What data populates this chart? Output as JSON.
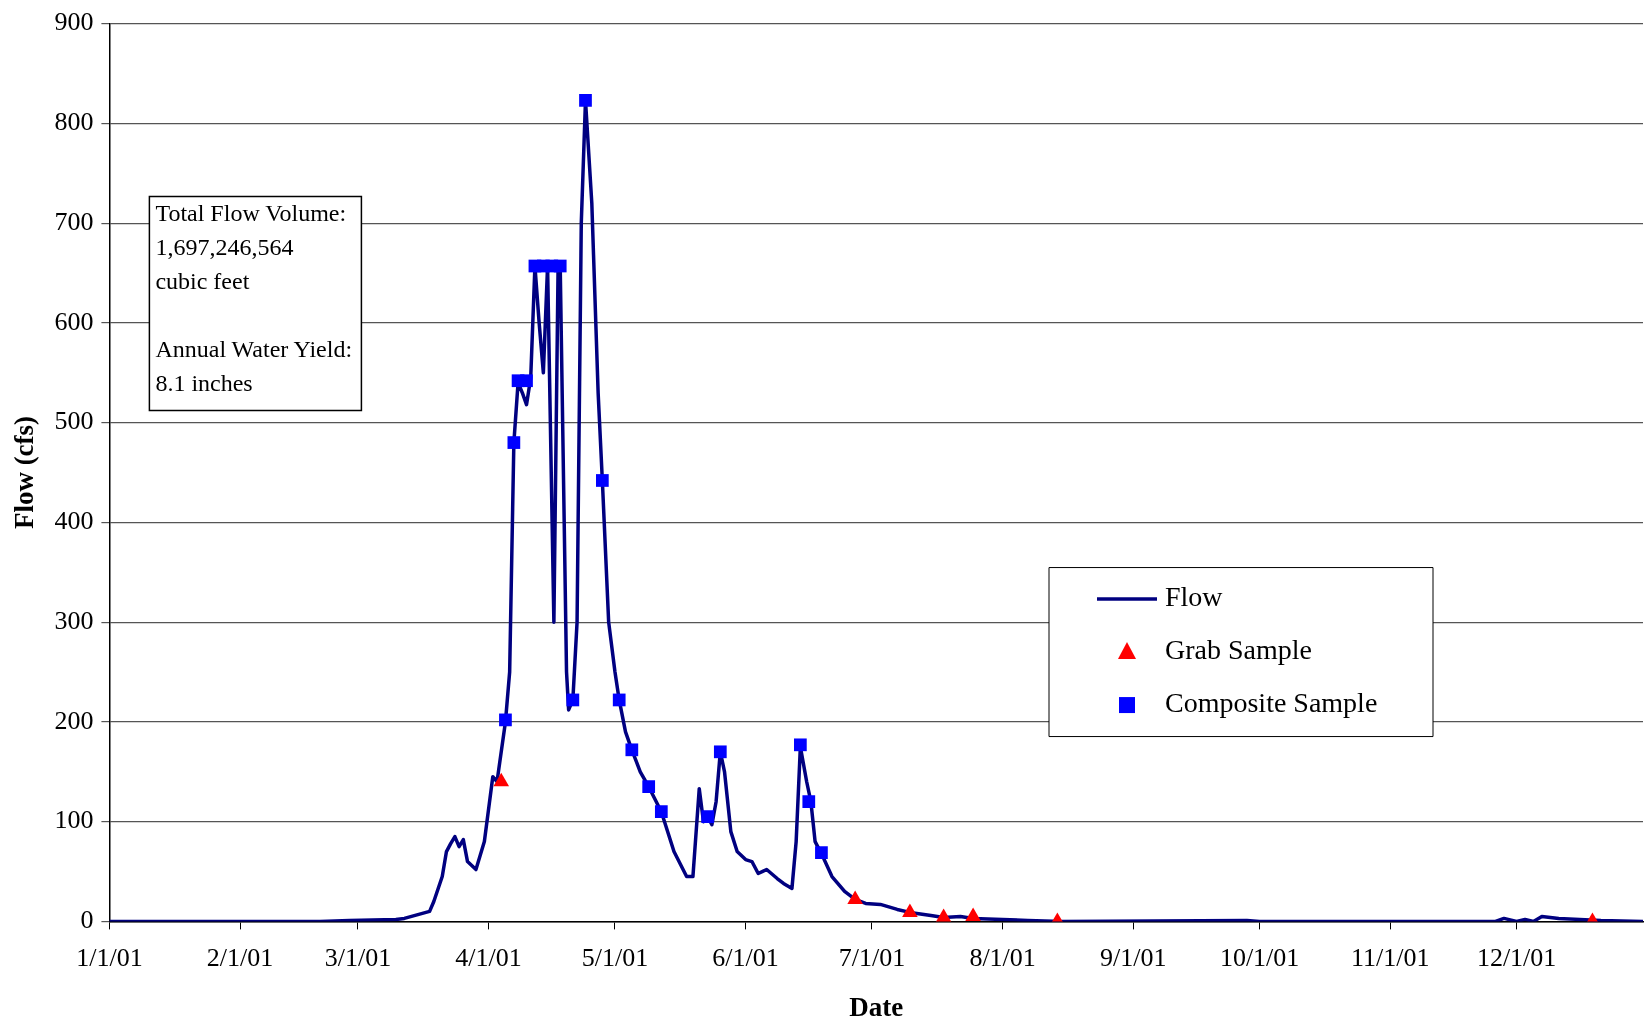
{
  "chart_data": {
    "type": "line",
    "xlabel": "Date",
    "ylabel": "Flow (cfs)",
    "xlim": [
      "--01-01",
      "--12-31"
    ],
    "xticks": [
      {
        "value": "--01-01",
        "label": "1/1/01"
      },
      {
        "value": "--02-01",
        "label": "2/1/01"
      },
      {
        "value": "--03-01",
        "label": "3/1/01"
      },
      {
        "value": "--04-01",
        "label": "4/1/01"
      },
      {
        "value": "--05-01",
        "label": "5/1/01"
      },
      {
        "value": "--06-01",
        "label": "6/1/01"
      },
      {
        "value": "--07-01",
        "label": "7/1/01"
      },
      {
        "value": "--08-01",
        "label": "8/1/01"
      },
      {
        "value": "--09-01",
        "label": "9/1/01"
      },
      {
        "value": "--10-01",
        "label": "10/1/01"
      },
      {
        "value": "--11-01",
        "label": "11/1/01"
      },
      {
        "value": "--12-01",
        "label": "12/1/01"
      }
    ],
    "ylim": [
      0,
      900
    ],
    "yticks": [
      0,
      100,
      200,
      300,
      400,
      500,
      600,
      700,
      800,
      900
    ],
    "grid": "y",
    "legend": "right",
    "annotations": [
      "Total Flow Volume:\n1,697,246,564\ncubic feet\n\nAnnual Water Yield:\n8.1 inches"
    ],
    "series": [
      {
        "name": "Flow",
        "color": "#000080",
        "marker": "none",
        "line_style": "solid",
        "x": [
          "--01-01",
          "--02-20",
          "--02-27",
          "--03-10",
          "--03-12",
          "--03-18",
          "--03-19",
          "--03-21",
          "--03-22",
          "--03-23",
          "--03-24",
          "--03-25",
          "--03-26",
          "--03-27",
          "--03-29",
          "--03-31",
          "--04-02",
          "--04-03",
          "--04-05",
          "--04-06",
          "--04-07",
          "--04-08",
          "--04-09",
          "--04-10",
          "--04-11",
          "--04-12",
          "--04-13",
          "--04-14",
          "--04-15",
          "--04-16T12:00",
          "--04-17T12:00",
          "--04-18",
          "--04-19T12:00",
          "--04-20",
          "--04-21",
          "--04-22",
          "--04-23",
          "--04-24",
          "--04-25T12:00",
          "--04-27",
          "--04-28",
          "--04-29T12:00",
          "--05-01",
          "--05-02",
          "--05-03T12:00",
          "--05-05",
          "--05-07",
          "--05-09",
          "--05-12",
          "--05-15",
          "--05-18",
          "--05-19T12:00",
          "--05-21",
          "--05-22",
          "--05-23",
          "--05-24",
          "--05-25",
          "--05-26",
          "--05-27",
          "--05-28T12:00",
          "--05-30",
          "--06-01",
          "--06-02T12:00",
          "--06-04",
          "--06-06",
          "--06-08T12:00",
          "--06-10",
          "--06-12",
          "--06-13",
          "--06-14",
          "--06-15T12:00",
          "--06-16T12:00",
          "--06-17T12:00",
          "--06-19",
          "--06-21T12:00",
          "--06-24T12:00",
          "--06-27",
          "--06-29T12:00",
          "--07-03",
          "--07-07",
          "--07-10",
          "--07-15",
          "--07-18",
          "--07-22",
          "--07-25",
          "--08-01",
          "--08-07",
          "--08-15",
          "--09-28",
          "--10-01",
          "--11-26",
          "--11-28",
          "--12-01",
          "--12-03",
          "--12-05",
          "--12-07",
          "--12-11",
          "--12-21",
          "--12-31"
        ],
        "values": [
          0,
          0,
          1,
          2,
          3,
          10,
          20,
          45,
          70,
          78,
          85,
          75,
          82,
          60,
          52,
          80,
          145,
          140,
          200,
          250,
          480,
          540,
          530,
          518,
          545,
          657,
          600,
          550,
          657,
          300,
          657,
          657,
          250,
          212,
          222,
          300,
          700,
          823,
          720,
          530,
          442,
          300,
          250,
          222,
          190,
          172,
          150,
          135,
          110,
          70,
          45,
          45,
          133,
          100,
          105,
          97,
          120,
          170,
          150,
          90,
          70,
          62,
          60,
          48,
          52,
          43,
          38,
          33,
          80,
          175,
          140,
          120,
          80,
          68,
          45,
          30,
          22,
          18,
          17,
          12,
          9,
          6,
          4,
          5,
          3,
          2,
          1,
          0,
          1,
          0,
          0,
          3,
          0,
          2,
          0,
          5,
          3,
          1,
          0
        ]
      },
      {
        "name": "Grab Sample",
        "type": "scatter",
        "color": "#ff0000",
        "marker": "triangle",
        "x": [
          "--04-04",
          "--06-27",
          "--07-10",
          "--07-18",
          "--07-25",
          "--08-14",
          "--12-19"
        ],
        "values": [
          140,
          22,
          9,
          4,
          5,
          0,
          0
        ]
      },
      {
        "name": "Composite Sample",
        "type": "scatter",
        "color": "#0000ff",
        "marker": "square",
        "x": [
          "--04-05",
          "--04-07",
          "--04-08",
          "--04-10",
          "--04-12",
          "--04-14",
          "--04-16",
          "--04-18",
          "--04-21",
          "--04-24",
          "--04-28",
          "--05-02",
          "--05-05",
          "--05-09",
          "--05-12",
          "--05-23",
          "--05-26",
          "--06-14",
          "--06-16",
          "--06-19"
        ],
        "values": [
          202,
          480,
          542,
          542,
          657,
          657,
          657,
          657,
          222,
          823,
          442,
          222,
          172,
          135,
          110,
          105,
          170,
          177,
          120,
          69
        ]
      }
    ]
  }
}
